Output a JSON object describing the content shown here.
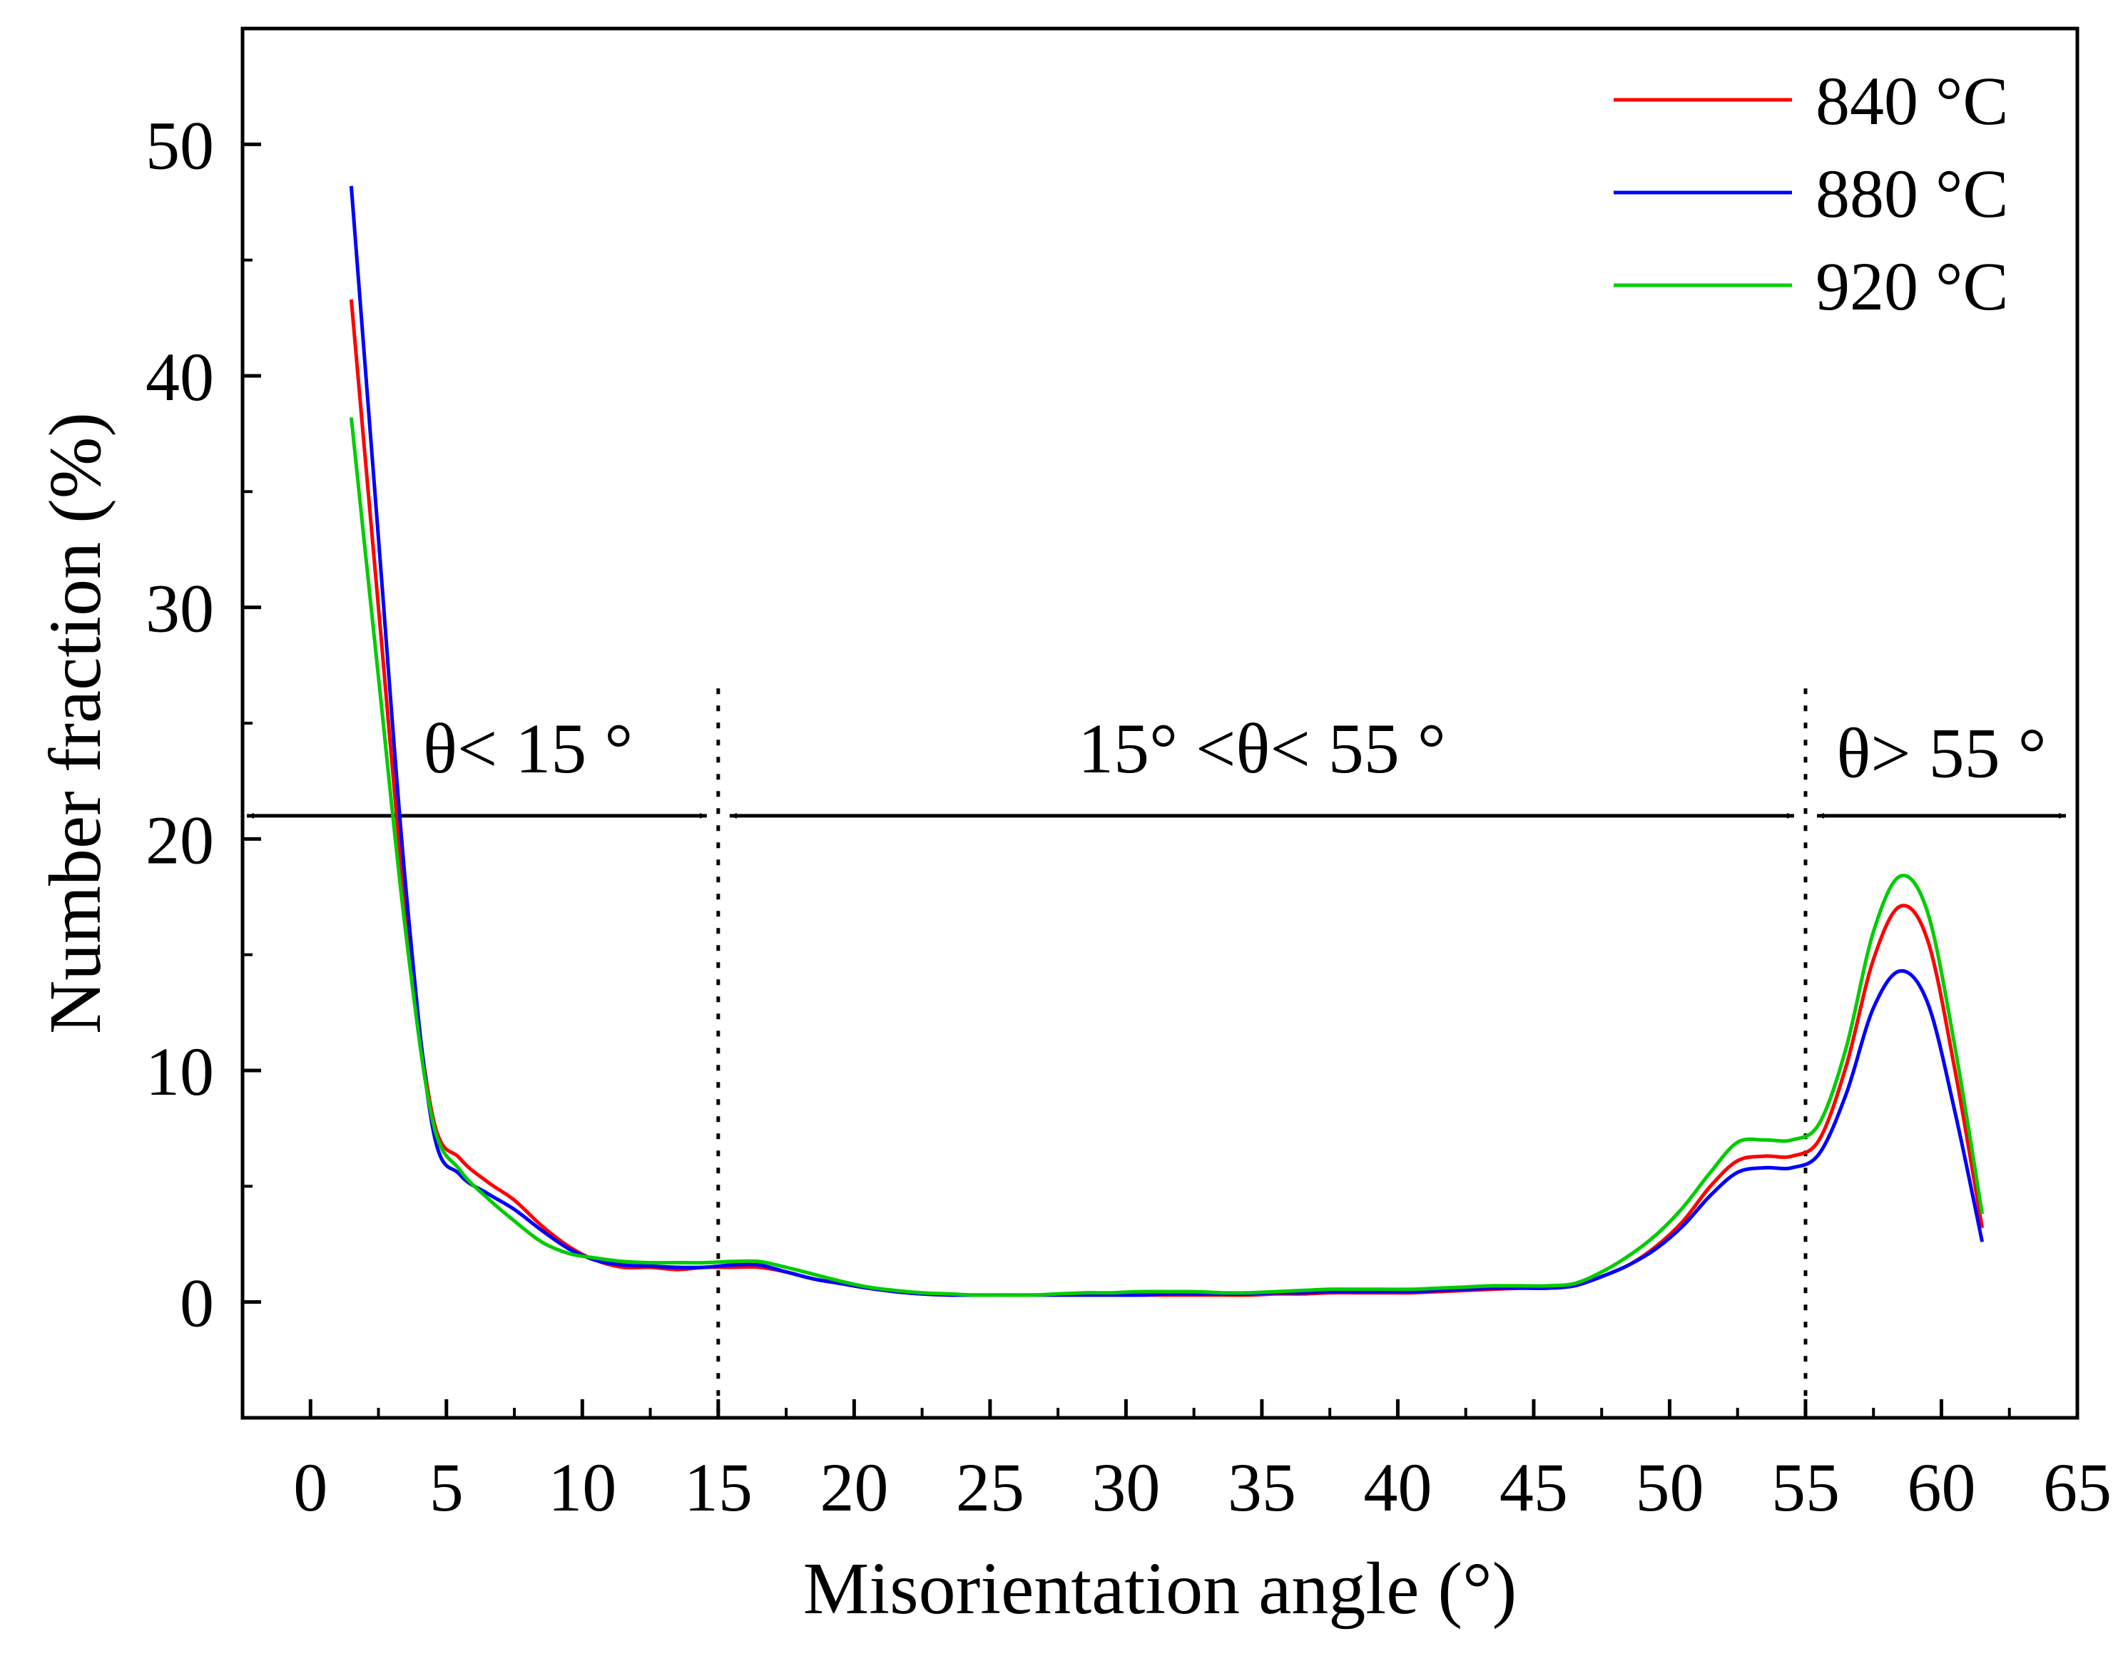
{
  "chart_data": {
    "type": "line",
    "xlabel": "Misorientation angle (°)",
    "ylabel": "Number fraction (%)",
    "xlim": [
      -2.5,
      65
    ],
    "ylim": [
      -5,
      55
    ],
    "xticks": [
      0,
      5,
      10,
      15,
      20,
      25,
      30,
      35,
      40,
      45,
      50,
      55,
      60,
      65
    ],
    "yticks": [
      0,
      10,
      20,
      30,
      40,
      50
    ],
    "grid": false,
    "legend_position": "top-right",
    "series": [
      {
        "name": "840 °C",
        "color": "#ff0000",
        "points": [
          [
            1.5,
            43.3
          ],
          [
            2.5,
            30
          ],
          [
            3.5,
            17
          ],
          [
            4.5,
            8
          ],
          [
            5.5,
            6.2
          ],
          [
            6.5,
            5.2
          ],
          [
            7.5,
            4.4
          ],
          [
            8.5,
            3.3
          ],
          [
            9.5,
            2.4
          ],
          [
            10.5,
            1.8
          ],
          [
            11.5,
            1.5
          ],
          [
            12.5,
            1.5
          ],
          [
            13.5,
            1.4
          ],
          [
            14.5,
            1.5
          ],
          [
            15.5,
            1.5
          ],
          [
            16.5,
            1.5
          ],
          [
            17.5,
            1.3
          ],
          [
            18.5,
            1.0
          ],
          [
            19.5,
            0.8
          ],
          [
            20.5,
            0.6
          ],
          [
            21.5,
            0.45
          ],
          [
            22.5,
            0.35
          ],
          [
            23.5,
            0.3
          ],
          [
            24.5,
            0.3
          ],
          [
            25.5,
            0.3
          ],
          [
            26.5,
            0.3
          ],
          [
            27.5,
            0.3
          ],
          [
            28.5,
            0.3
          ],
          [
            29.5,
            0.3
          ],
          [
            30.5,
            0.3
          ],
          [
            31.5,
            0.3
          ],
          [
            32.5,
            0.3
          ],
          [
            33.5,
            0.3
          ],
          [
            34.5,
            0.3
          ],
          [
            35.5,
            0.35
          ],
          [
            36.5,
            0.35
          ],
          [
            37.5,
            0.4
          ],
          [
            38.5,
            0.4
          ],
          [
            39.5,
            0.4
          ],
          [
            40.5,
            0.4
          ],
          [
            41.5,
            0.45
          ],
          [
            42.5,
            0.5
          ],
          [
            43.5,
            0.55
          ],
          [
            44.5,
            0.6
          ],
          [
            45.5,
            0.6
          ],
          [
            46.5,
            0.7
          ],
          [
            47.5,
            1.1
          ],
          [
            48.5,
            1.6
          ],
          [
            49.5,
            2.4
          ],
          [
            50.5,
            3.5
          ],
          [
            51.5,
            5.0
          ],
          [
            52.5,
            6.1
          ],
          [
            53.5,
            6.3
          ],
          [
            54.5,
            6.3
          ],
          [
            55.5,
            7.0
          ],
          [
            56.5,
            10.2
          ],
          [
            57.5,
            14.8
          ],
          [
            58.5,
            17.1
          ],
          [
            59.5,
            15.6
          ],
          [
            60.5,
            10.0
          ],
          [
            61.5,
            3.2
          ]
        ]
      },
      {
        "name": "880 °C",
        "color": "#0000ff",
        "points": [
          [
            1.5,
            48.2
          ],
          [
            2.5,
            33
          ],
          [
            3.5,
            18
          ],
          [
            4.5,
            7.5
          ],
          [
            5.5,
            5.5
          ],
          [
            6.5,
            4.7
          ],
          [
            7.5,
            4.0
          ],
          [
            8.5,
            3.1
          ],
          [
            9.5,
            2.3
          ],
          [
            10.5,
            1.8
          ],
          [
            11.5,
            1.6
          ],
          [
            12.5,
            1.55
          ],
          [
            13.5,
            1.5
          ],
          [
            14.5,
            1.5
          ],
          [
            15.5,
            1.6
          ],
          [
            16.5,
            1.6
          ],
          [
            17.5,
            1.3
          ],
          [
            18.5,
            1.0
          ],
          [
            19.5,
            0.8
          ],
          [
            20.5,
            0.6
          ],
          [
            21.5,
            0.45
          ],
          [
            22.5,
            0.35
          ],
          [
            23.5,
            0.3
          ],
          [
            24.5,
            0.3
          ],
          [
            25.5,
            0.3
          ],
          [
            26.5,
            0.3
          ],
          [
            27.5,
            0.3
          ],
          [
            28.5,
            0.3
          ],
          [
            29.5,
            0.3
          ],
          [
            30.5,
            0.3
          ],
          [
            31.5,
            0.35
          ],
          [
            32.5,
            0.35
          ],
          [
            33.5,
            0.35
          ],
          [
            34.5,
            0.35
          ],
          [
            35.5,
            0.4
          ],
          [
            36.5,
            0.4
          ],
          [
            37.5,
            0.45
          ],
          [
            38.5,
            0.45
          ],
          [
            39.5,
            0.45
          ],
          [
            40.5,
            0.45
          ],
          [
            41.5,
            0.5
          ],
          [
            42.5,
            0.55
          ],
          [
            43.5,
            0.6
          ],
          [
            44.5,
            0.6
          ],
          [
            45.5,
            0.6
          ],
          [
            46.5,
            0.7
          ],
          [
            47.5,
            1.1
          ],
          [
            48.5,
            1.6
          ],
          [
            49.5,
            2.3
          ],
          [
            50.5,
            3.3
          ],
          [
            51.5,
            4.6
          ],
          [
            52.5,
            5.6
          ],
          [
            53.5,
            5.8
          ],
          [
            54.5,
            5.8
          ],
          [
            55.5,
            6.4
          ],
          [
            56.5,
            9.0
          ],
          [
            57.5,
            12.7
          ],
          [
            58.5,
            14.3
          ],
          [
            59.5,
            12.9
          ],
          [
            60.5,
            8.2
          ],
          [
            61.5,
            2.6
          ]
        ]
      },
      {
        "name": "920 °C",
        "color": "#00cc00",
        "points": [
          [
            1.5,
            38.2
          ],
          [
            2.5,
            27
          ],
          [
            3.5,
            16
          ],
          [
            4.5,
            7.8
          ],
          [
            5.5,
            5.7
          ],
          [
            6.5,
            4.5
          ],
          [
            7.5,
            3.5
          ],
          [
            8.5,
            2.6
          ],
          [
            9.5,
            2.1
          ],
          [
            10.5,
            1.9
          ],
          [
            11.5,
            1.75
          ],
          [
            12.5,
            1.7
          ],
          [
            13.5,
            1.7
          ],
          [
            14.5,
            1.7
          ],
          [
            15.5,
            1.75
          ],
          [
            16.5,
            1.75
          ],
          [
            17.5,
            1.5
          ],
          [
            18.5,
            1.2
          ],
          [
            19.5,
            0.9
          ],
          [
            20.5,
            0.65
          ],
          [
            21.5,
            0.5
          ],
          [
            22.5,
            0.4
          ],
          [
            23.5,
            0.35
          ],
          [
            24.5,
            0.3
          ],
          [
            25.5,
            0.3
          ],
          [
            26.5,
            0.3
          ],
          [
            27.5,
            0.35
          ],
          [
            28.5,
            0.4
          ],
          [
            29.5,
            0.4
          ],
          [
            30.5,
            0.45
          ],
          [
            31.5,
            0.45
          ],
          [
            32.5,
            0.45
          ],
          [
            33.5,
            0.4
          ],
          [
            34.5,
            0.4
          ],
          [
            35.5,
            0.45
          ],
          [
            36.5,
            0.5
          ],
          [
            37.5,
            0.55
          ],
          [
            38.5,
            0.55
          ],
          [
            39.5,
            0.55
          ],
          [
            40.5,
            0.55
          ],
          [
            41.5,
            0.6
          ],
          [
            42.5,
            0.65
          ],
          [
            43.5,
            0.7
          ],
          [
            44.5,
            0.7
          ],
          [
            45.5,
            0.7
          ],
          [
            46.5,
            0.8
          ],
          [
            47.5,
            1.3
          ],
          [
            48.5,
            2.0
          ],
          [
            49.5,
            2.9
          ],
          [
            50.5,
            4.1
          ],
          [
            51.5,
            5.6
          ],
          [
            52.5,
            6.9
          ],
          [
            53.5,
            7.0
          ],
          [
            54.5,
            7.0
          ],
          [
            55.5,
            7.7
          ],
          [
            56.5,
            11.0
          ],
          [
            57.5,
            16.0
          ],
          [
            58.5,
            18.4
          ],
          [
            59.5,
            16.8
          ],
          [
            60.5,
            11.0
          ],
          [
            61.5,
            3.8
          ]
        ]
      }
    ],
    "boundaries": [
      15,
      55
    ],
    "regions": [
      {
        "label": "θ< 15 °",
        "from": -2.5,
        "to": 15,
        "label_x": 8,
        "label_y": 23.8
      },
      {
        "label": "15° <θ< 55 °",
        "from": 15,
        "to": 55,
        "label_x": 35,
        "label_y": 23.8
      },
      {
        "label": "θ> 55 °",
        "from": 55,
        "to": 65,
        "label_x": 60,
        "label_y": 23.6
      }
    ],
    "arrow_y": 21
  }
}
